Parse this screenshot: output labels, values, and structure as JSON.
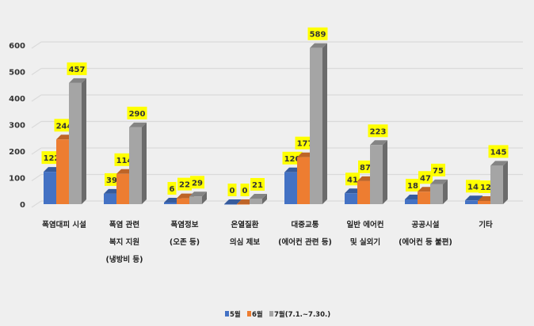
{
  "chart_data": {
    "type": "bar",
    "title": "",
    "xlabel": "",
    "ylabel": "",
    "ylim": [
      0,
      600
    ],
    "yticks": [
      0,
      100,
      200,
      300,
      400,
      500,
      600
    ],
    "grid": true,
    "legend_position": "bottom",
    "categories": [
      [
        "폭염대피 시설"
      ],
      [
        "폭염 관련",
        "복지 지원",
        "(냉방비 등)"
      ],
      [
        "폭염정보",
        "(오존 등)"
      ],
      [
        "온열질환",
        "의심 제보"
      ],
      [
        "대중교통",
        "(에어컨 관련 등)"
      ],
      [
        "일반 에어컨",
        "및 실외기"
      ],
      [
        "공공시설",
        "(에어컨 등 불편)"
      ],
      [
        "기타"
      ]
    ],
    "series": [
      {
        "name": "5월",
        "color": "#4472c4",
        "values": [
          122,
          39,
          6,
          0,
          120,
          41,
          18,
          14
        ]
      },
      {
        "name": "6월",
        "color": "#ed7d31",
        "values": [
          244,
          114,
          22,
          0,
          177,
          87,
          47,
          12
        ]
      },
      {
        "name": "7월(7.1.~7.30.)",
        "color": "#a5a5a5",
        "values": [
          457,
          290,
          29,
          21,
          589,
          223,
          75,
          145
        ]
      }
    ],
    "label_bg": "#ffff00"
  }
}
